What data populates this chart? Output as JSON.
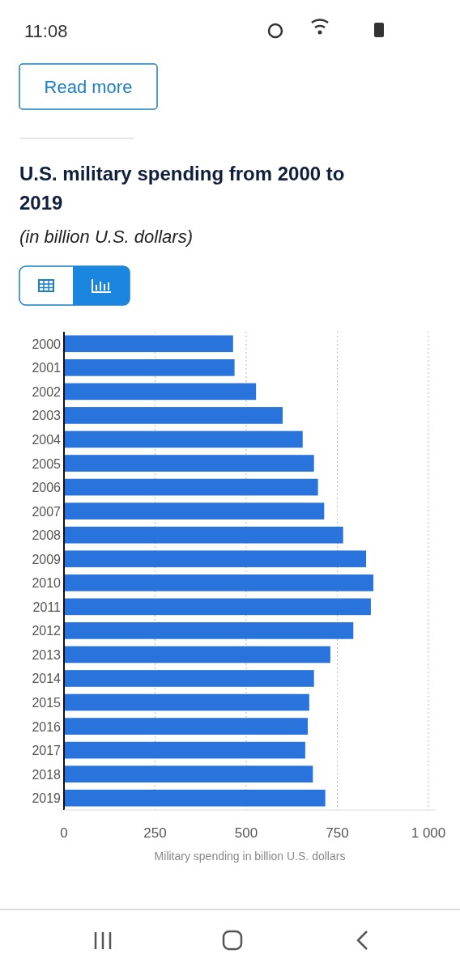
{
  "chart_data": {
    "type": "bar",
    "orientation": "horizontal",
    "title": "U.S. military spending from 2000 to 2019",
    "subtitle": "(in billion U.S. dollars)",
    "xlabel": "Military spending in billion U.S. dollars",
    "categories": [
      "2000",
      "2001",
      "2002",
      "2003",
      "2004",
      "2005",
      "2006",
      "2007",
      "2008",
      "2009",
      "2010",
      "2011",
      "2012",
      "2013",
      "2014",
      "2015",
      "2016",
      "2017",
      "2018",
      "2019"
    ],
    "values": [
      464,
      468,
      527,
      600,
      655,
      686,
      697,
      714,
      766,
      829,
      849,
      842,
      794,
      731,
      686,
      673,
      669,
      662,
      683,
      717
    ],
    "color": "#2874dc",
    "xlim": [
      0,
      1020
    ],
    "xticks": [
      0,
      250,
      500,
      750,
      {
        "value": 1000,
        "label": "1 000"
      }
    ],
    "grid": "x",
    "annotations": [
      "11:08",
      "Read more"
    ]
  }
}
